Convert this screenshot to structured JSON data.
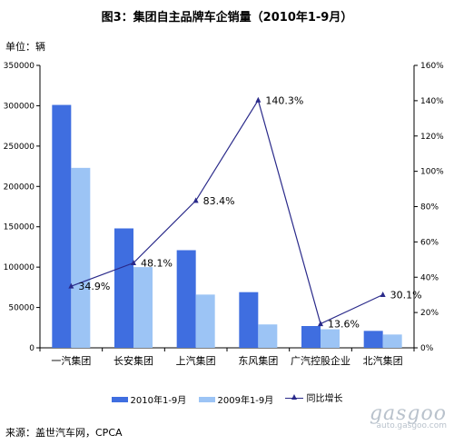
{
  "header": {
    "title": "图3：集团自主品牌车企销量（2010年1-9月）",
    "unit": "单位：辆",
    "source": "来源：盖世汽车网，CPCA"
  },
  "watermark": {
    "text": "gasgoo",
    "url": "auto.gasgoo.com"
  },
  "chart_data": {
    "type": "bar",
    "categories": [
      "一汽集团",
      "长安集团",
      "上汽集团",
      "东风集团",
      "广汽控股企业",
      "北汽集团"
    ],
    "series": [
      {
        "name": "2010年1-9月",
        "type": "bar",
        "axis": "left",
        "color": "#3f6ee0",
        "values": [
          301000,
          148000,
          121000,
          69000,
          27000,
          21000
        ]
      },
      {
        "name": "2009年1-9月",
        "type": "bar",
        "axis": "left",
        "color": "#9cc4f5",
        "values": [
          223000,
          100000,
          66000,
          29000,
          23000,
          16500
        ]
      },
      {
        "name": "同比增长",
        "type": "line",
        "axis": "right",
        "color": "#2a2a8a",
        "values": [
          34.9,
          48.1,
          83.4,
          140.3,
          13.6,
          30.1
        ],
        "labels": [
          "34.9%",
          "48.1%",
          "83.4%",
          "140.3%",
          "13.6%",
          "30.1%"
        ]
      }
    ],
    "y_left": {
      "min": 0,
      "max": 350000,
      "ticks": [
        0,
        50000,
        100000,
        150000,
        200000,
        250000,
        300000,
        350000
      ],
      "tick_labels": [
        "0",
        "50000",
        "100000",
        "150000",
        "200000",
        "250000",
        "300000",
        "350000"
      ]
    },
    "y_right": {
      "min": 0,
      "max": 160,
      "ticks": [
        0,
        20,
        40,
        60,
        80,
        100,
        120,
        140,
        160
      ],
      "tick_labels": [
        "0%",
        "20%",
        "40%",
        "60%",
        "80%",
        "100%",
        "120%",
        "140%",
        "160%"
      ]
    },
    "grid": false,
    "legend_position": "bottom"
  }
}
